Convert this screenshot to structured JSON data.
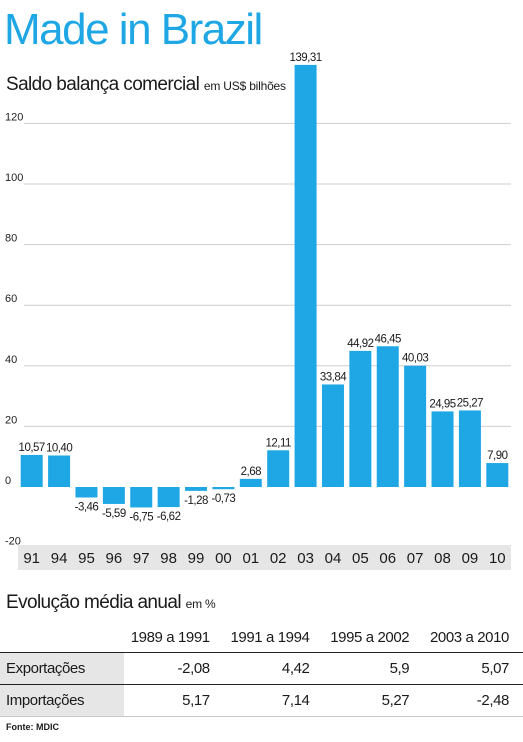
{
  "page": {
    "title": "Made in Brazil",
    "subtitle": "Saldo balança comercial",
    "subtitle_unit": "em US$ bilhões",
    "source": "Fonte: MDIC"
  },
  "chart_data": {
    "type": "bar",
    "title": "Saldo balança comercial",
    "ylabel": "em US$ bilhões",
    "xlabel": "",
    "categories": [
      "91",
      "94",
      "95",
      "96",
      "97",
      "98",
      "99",
      "00",
      "01",
      "02",
      "03",
      "04",
      "05",
      "06",
      "07",
      "08",
      "09",
      "10"
    ],
    "values": [
      10.57,
      10.4,
      -3.46,
      -5.59,
      -6.75,
      -6.62,
      -1.28,
      -0.73,
      2.68,
      12.11,
      139.31,
      33.84,
      44.92,
      46.45,
      40.03,
      24.95,
      25.27,
      7.9
    ],
    "value_labels": [
      "10,57",
      "10,40",
      "-3,46",
      "-5,59",
      "-6,75",
      "-6,62",
      "-1,28",
      "-0,73",
      "2,68",
      "12,11",
      "139,31",
      "33,84",
      "44,92",
      "46,45",
      "40,03",
      "24,95",
      "25,27",
      "7,90"
    ],
    "yticks": [
      120,
      100,
      80,
      60,
      40,
      20,
      0,
      -20
    ],
    "ylim": [
      -20,
      128
    ],
    "grid": true,
    "bar_color": "#1ea7e4",
    "axis_band_color": "#e6e6e6"
  },
  "growth_table": {
    "title": "Evolução média anual",
    "unit": "em %",
    "columns": [
      "1989 a 1991",
      "1991 a 1994",
      "1995 a 2002",
      "2003 a 2010"
    ],
    "rows": [
      {
        "label": "Exportações",
        "values": [
          "-2,08",
          "4,42",
          "5,9",
          "5,07"
        ]
      },
      {
        "label": "Importações",
        "values": [
          "5,17",
          "7,14",
          "5,27",
          "-2,48"
        ]
      }
    ]
  }
}
